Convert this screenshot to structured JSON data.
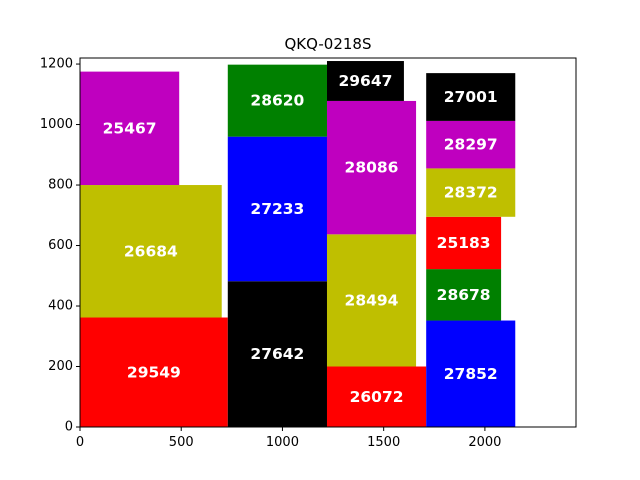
{
  "chart_data": {
    "type": "bar",
    "subtype": "stacked-rectangles",
    "title": "QKQ-0218S",
    "xlabel": "",
    "ylabel": "",
    "xlim": [
      0,
      2450
    ],
    "ylim": [
      0,
      1220
    ],
    "xticks": [
      0,
      500,
      1000,
      1500,
      2000
    ],
    "yticks": [
      0,
      200,
      400,
      600,
      800,
      1000,
      1200
    ],
    "grid": false,
    "legend": "none",
    "colors": {
      "r": "#ff0000",
      "g": "#008000",
      "b": "#0000ff",
      "m": "#bf00bf",
      "y": "#bfbf00",
      "k": "#000000"
    },
    "blocks": [
      {
        "label": "29549",
        "x0": 0,
        "x1": 730,
        "y0": 0,
        "y1": 362,
        "color": "r"
      },
      {
        "label": "26684",
        "x0": 0,
        "x1": 700,
        "y0": 362,
        "y1": 800,
        "color": "y"
      },
      {
        "label": "25467",
        "x0": 0,
        "x1": 490,
        "y0": 800,
        "y1": 1175,
        "color": "m"
      },
      {
        "label": "27642",
        "x0": 730,
        "x1": 1220,
        "y0": 0,
        "y1": 482,
        "color": "k"
      },
      {
        "label": "27233",
        "x0": 730,
        "x1": 1220,
        "y0": 482,
        "y1": 960,
        "color": "b"
      },
      {
        "label": "28620",
        "x0": 730,
        "x1": 1220,
        "y0": 960,
        "y1": 1198,
        "color": "g"
      },
      {
        "label": "26072",
        "x0": 1220,
        "x1": 1710,
        "y0": 0,
        "y1": 200,
        "color": "r"
      },
      {
        "label": "28494",
        "x0": 1220,
        "x1": 1660,
        "y0": 200,
        "y1": 637,
        "color": "y"
      },
      {
        "label": "28086",
        "x0": 1220,
        "x1": 1660,
        "y0": 637,
        "y1": 1078,
        "color": "m"
      },
      {
        "label": "29647",
        "x0": 1220,
        "x1": 1600,
        "y0": 1078,
        "y1": 1210,
        "color": "k"
      },
      {
        "label": "27852",
        "x0": 1710,
        "x1": 2150,
        "y0": 0,
        "y1": 352,
        "color": "b"
      },
      {
        "label": "28678",
        "x0": 1710,
        "x1": 2080,
        "y0": 352,
        "y1": 522,
        "color": "g"
      },
      {
        "label": "25183",
        "x0": 1710,
        "x1": 2080,
        "y0": 522,
        "y1": 695,
        "color": "r"
      },
      {
        "label": "28372",
        "x0": 1710,
        "x1": 2150,
        "y0": 695,
        "y1": 855,
        "color": "y"
      },
      {
        "label": "28297",
        "x0": 1710,
        "x1": 2150,
        "y0": 855,
        "y1": 1012,
        "color": "m"
      },
      {
        "label": "27001",
        "x0": 1710,
        "x1": 2150,
        "y0": 1012,
        "y1": 1170,
        "color": "k"
      }
    ]
  }
}
